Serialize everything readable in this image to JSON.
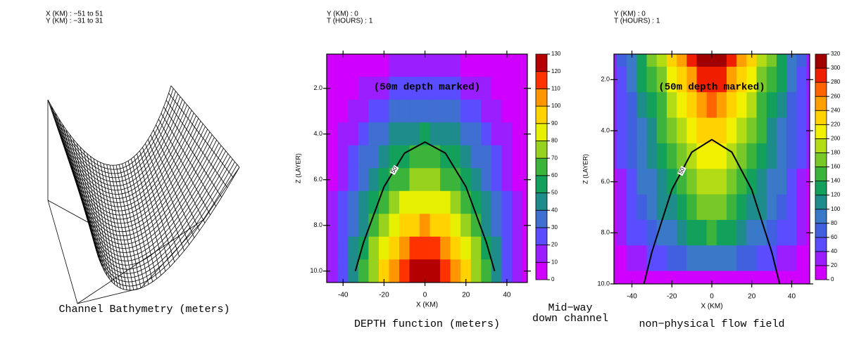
{
  "chart_data": [
    {
      "type": "surface",
      "header": [
        "X (KM) : −51 to 51",
        "Y (KM) : −31 to 31"
      ],
      "title": "Channel Bathymetry (meters)"
    },
    {
      "type": "heatmap",
      "header": [
        "Y (KM) : 0",
        "T (HOURS) : 1"
      ],
      "title": "DEPTH function (meters)",
      "annotation": "(50m depth marked)",
      "xlabel": "X (KM)",
      "ylabel": "Z (LAYER)",
      "xlim": [
        -48,
        50
      ],
      "ylim": [
        10.5,
        0.5
      ],
      "xticks": [
        -40,
        -20,
        0,
        20,
        40
      ],
      "yticks": [
        {
          "value": 2,
          "label": "2.0"
        },
        {
          "value": 4,
          "label": "4.0"
        },
        {
          "value": 6,
          "label": "6.0"
        },
        {
          "value": 8,
          "label": "8.0"
        },
        {
          "value": 10,
          "label": "10.0"
        }
      ],
      "x": [
        -50,
        -45,
        -40,
        -35,
        -30,
        -25,
        -20,
        -15,
        -10,
        -5,
        0,
        5,
        10,
        15,
        20,
        25,
        30,
        35,
        40,
        45,
        50
      ],
      "y": [
        1,
        2,
        3,
        4,
        5,
        6,
        7,
        8,
        9,
        10
      ],
      "values": [
        [
          1,
          2,
          3,
          5,
          6,
          8,
          9,
          11,
          12,
          12,
          13,
          12,
          12,
          11,
          9,
          8,
          6,
          5,
          3,
          2,
          1
        ],
        [
          1,
          3,
          6,
          9,
          12,
          16,
          18,
          21,
          23,
          24,
          25,
          24,
          23,
          21,
          18,
          16,
          12,
          9,
          6,
          3,
          1
        ],
        [
          2,
          5,
          8,
          14,
          18,
          23,
          28,
          32,
          35,
          37,
          38,
          37,
          35,
          32,
          28,
          23,
          18,
          14,
          8,
          5,
          2
        ],
        [
          2,
          6,
          11,
          18,
          24,
          31,
          37,
          42,
          46,
          49,
          50,
          49,
          46,
          42,
          37,
          31,
          24,
          18,
          11,
          6,
          2
        ],
        [
          3,
          8,
          14,
          23,
          30,
          39,
          46,
          53,
          58,
          61,
          63,
          61,
          58,
          53,
          46,
          39,
          30,
          23,
          14,
          8,
          3
        ],
        [
          3,
          9,
          17,
          27,
          36,
          47,
          55,
          63,
          69,
          73,
          75,
          73,
          69,
          63,
          55,
          47,
          36,
          27,
          17,
          9,
          3
        ],
        [
          4,
          11,
          20,
          32,
          42,
          55,
          64,
          74,
          81,
          85,
          88,
          85,
          81,
          74,
          64,
          55,
          42,
          32,
          20,
          11,
          4
        ],
        [
          4,
          12,
          22,
          36,
          48,
          62,
          74,
          84,
          92,
          98,
          100,
          98,
          92,
          84,
          74,
          62,
          48,
          36,
          22,
          12,
          4
        ],
        [
          5,
          14,
          25,
          41,
          54,
          70,
          83,
          95,
          104,
          110,
          113,
          110,
          104,
          95,
          83,
          70,
          54,
          41,
          25,
          14,
          5
        ],
        [
          5,
          15,
          28,
          45,
          60,
          78,
          92,
          105,
          115,
          122,
          125,
          122,
          115,
          105,
          92,
          78,
          60,
          45,
          28,
          15,
          5
        ]
      ],
      "levels": [
        0,
        10,
        20,
        30,
        40,
        50,
        60,
        70,
        80,
        90,
        100,
        110,
        120,
        130
      ],
      "colors": [
        "#d000ff",
        "#9a1eff",
        "#5a4cff",
        "#3f6fd0",
        "#1f8c8c",
        "#12a05a",
        "#3cb43c",
        "#96d21e",
        "#e6f000",
        "#ffd200",
        "#ff9600",
        "#ff3200",
        "#b40000"
      ],
      "contour": {
        "level": 50,
        "x": [
          -34,
          -30,
          -20,
          -10,
          0,
          10,
          20,
          30,
          34
        ],
        "y": [
          10,
          8.75,
          6.31,
          4.84,
          4.35,
          4.84,
          6.31,
          8.75,
          10
        ]
      }
    },
    {
      "type": "contour",
      "header": [
        "Y (KM) : 0",
        "T (HOURS) : 1"
      ],
      "title": "non−physical flow field",
      "annotation": "(50m depth marked)",
      "xlabel": "X (KM)",
      "ylabel": "Z (LAYER)",
      "xlim": [
        -49,
        49
      ],
      "ylim": [
        10,
        1
      ],
      "xticks": [
        -40,
        -20,
        0,
        20,
        40
      ],
      "yticks": [
        {
          "value": 2,
          "label": "2.0"
        },
        {
          "value": 4,
          "label": "4.0"
        },
        {
          "value": 6,
          "label": "6.0"
        },
        {
          "value": 8,
          "label": "8.0"
        },
        {
          "value": 10,
          "label": "10.0"
        }
      ],
      "x": [
        -50,
        -45,
        -40,
        -35,
        -30,
        -25,
        -20,
        -15,
        -10,
        -5,
        0,
        5,
        10,
        15,
        20,
        25,
        30,
        35,
        40,
        45,
        50
      ],
      "y": [
        1,
        2,
        3,
        4,
        5,
        6,
        7,
        8,
        9,
        10
      ],
      "values": [
        [
          30,
          60,
          95,
          130,
          160,
          190,
          220,
          250,
          280,
          305,
          320,
          305,
          280,
          250,
          220,
          190,
          160,
          130,
          95,
          60,
          30
        ],
        [
          28,
          55,
          87,
          120,
          147,
          175,
          202,
          230,
          258,
          281,
          294,
          281,
          258,
          230,
          202,
          175,
          147,
          120,
          87,
          55,
          28
        ],
        [
          25,
          49,
          78,
          107,
          131,
          156,
          180,
          205,
          230,
          250,
          262,
          250,
          230,
          205,
          180,
          156,
          131,
          107,
          78,
          49,
          25
        ],
        [
          22,
          44,
          70,
          96,
          118,
          141,
          163,
          185,
          207,
          226,
          237,
          226,
          207,
          185,
          163,
          141,
          118,
          96,
          70,
          44,
          22
        ],
        [
          20,
          41,
          65,
          88,
          109,
          129,
          150,
          170,
          190,
          207,
          218,
          207,
          190,
          170,
          150,
          129,
          109,
          88,
          65,
          41,
          20
        ],
        [
          19,
          37,
          59,
          81,
          99,
          118,
          136,
          155,
          174,
          189,
          198,
          189,
          174,
          155,
          136,
          118,
          99,
          81,
          59,
          37,
          19
        ],
        [
          16,
          32,
          51,
          70,
          86,
          103,
          119,
          135,
          151,
          165,
          173,
          165,
          151,
          135,
          119,
          103,
          86,
          70,
          51,
          32,
          16
        ],
        [
          13,
          26,
          42,
          57,
          70,
          84,
          97,
          110,
          123,
          134,
          141,
          134,
          123,
          110,
          97,
          84,
          70,
          57,
          42,
          26,
          13
        ],
        [
          9,
          18,
          29,
          39,
          48,
          57,
          66,
          75,
          84,
          92,
          96,
          92,
          84,
          75,
          66,
          57,
          48,
          39,
          29,
          18,
          9
        ],
        [
          2,
          4,
          6,
          8,
          10,
          11,
          13,
          15,
          17,
          18,
          19,
          18,
          17,
          15,
          13,
          11,
          10,
          8,
          6,
          4,
          2
        ]
      ],
      "levels": [
        0,
        20,
        40,
        60,
        80,
        100,
        120,
        140,
        160,
        180,
        200,
        220,
        240,
        260,
        280,
        300,
        320
      ],
      "colors": [
        "#d000ff",
        "#9a1eff",
        "#5a4cff",
        "#4060e0",
        "#3a78c8",
        "#1f8c8c",
        "#12a05a",
        "#3cb43c",
        "#78c828",
        "#b4dc14",
        "#f0f000",
        "#ffd200",
        "#ffa000",
        "#ff6400",
        "#f01e00",
        "#a00000"
      ],
      "contour": {
        "level": 50,
        "x": [
          -34,
          -30,
          -20,
          -10,
          0,
          10,
          20,
          30,
          34
        ],
        "y": [
          10,
          8.75,
          6.31,
          4.84,
          4.35,
          4.84,
          6.31,
          8.75,
          10
        ]
      }
    }
  ],
  "caption": [
    "Mid−way",
    "down channel"
  ]
}
